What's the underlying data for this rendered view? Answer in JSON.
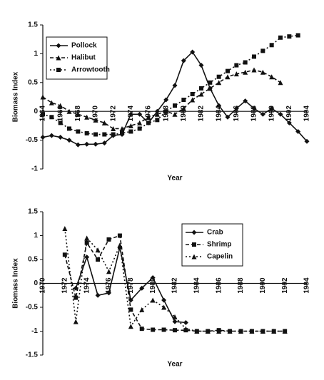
{
  "chart_data": [
    {
      "type": "line",
      "ylabel": "Biomass Index",
      "xlabel": "Year",
      "x": [
        1964,
        1965,
        1966,
        1967,
        1968,
        1969,
        1970,
        1971,
        1972,
        1973,
        1974,
        1975,
        1976,
        1977,
        1978,
        1979,
        1980,
        1981,
        1982,
        1983,
        1984,
        1985,
        1986,
        1987,
        1988,
        1989,
        1990,
        1991,
        1992,
        1993,
        1994
      ],
      "xlim": [
        1964,
        1994
      ],
      "xticks": [
        1964,
        1966,
        1968,
        1970,
        1972,
        1974,
        1976,
        1978,
        1980,
        1982,
        1984,
        1986,
        1988,
        1990,
        1992,
        1994
      ],
      "ylim": [
        -1,
        1.5
      ],
      "yticks": [
        -1,
        -0.5,
        0,
        0.5,
        1,
        1.5
      ],
      "legend": "upper left",
      "series": [
        {
          "name": "Pollock",
          "color": "#111111",
          "marker": "diamond",
          "dash": "solid",
          "values": [
            -0.45,
            -0.42,
            -0.45,
            -0.5,
            -0.58,
            -0.57,
            -0.57,
            -0.55,
            -0.42,
            -0.4,
            -0.05,
            -0.05,
            -0.2,
            0,
            0.2,
            0.45,
            0.88,
            1.03,
            0.8,
            0.4,
            0.1,
            -0.1,
            0.05,
            0.18,
            0.05,
            -0.05,
            0.05,
            -0.05,
            -0.2,
            -0.35,
            -0.52
          ]
        },
        {
          "name": "Halibut",
          "color": "#111111",
          "marker": "triangle",
          "dash": "dashed",
          "values": [
            0.25,
            0.15,
            0.1,
            0,
            -0.05,
            -0.1,
            -0.15,
            -0.2,
            -0.3,
            -0.3,
            -0.25,
            -0.2,
            -0.1,
            -0.05,
            0,
            -0.05,
            0.05,
            0.2,
            0.3,
            0.4,
            0.5,
            0.6,
            0.65,
            0.68,
            0.72,
            0.68,
            0.6,
            0.5,
            null,
            null,
            null
          ]
        },
        {
          "name": "Arrowtooth",
          "color": "#111111",
          "marker": "square",
          "dash": "dotted",
          "values": [
            -0.05,
            -0.1,
            -0.2,
            -0.3,
            -0.35,
            -0.38,
            -0.4,
            -0.4,
            -0.4,
            -0.38,
            -0.35,
            -0.3,
            -0.2,
            -0.15,
            0,
            0.1,
            0.2,
            0.3,
            0.4,
            0.5,
            0.6,
            0.7,
            0.8,
            0.85,
            0.95,
            1.05,
            1.15,
            1.28,
            1.3,
            1.32,
            null
          ]
        }
      ]
    },
    {
      "type": "line",
      "ylabel": "Biomass Index",
      "xlabel": "Year",
      "x": [
        1972,
        1973,
        1974,
        1975,
        1976,
        1977,
        1978,
        1979,
        1980,
        1981,
        1982,
        1983,
        1984,
        1985,
        1986,
        1987,
        1988,
        1989,
        1990,
        1991,
        1992
      ],
      "xlim": [
        1970,
        1994
      ],
      "xticks": [
        1970,
        1972,
        1974,
        1976,
        1978,
        1980,
        1982,
        1984,
        1986,
        1988,
        1990,
        1992,
        1994
      ],
      "ylim": [
        -1.5,
        1.5
      ],
      "yticks": [
        -1.5,
        -1,
        -0.5,
        0,
        0.5,
        1,
        1.5
      ],
      "legend": "upper right",
      "series": [
        {
          "name": "Crab",
          "color": "#111111",
          "marker": "diamond",
          "dash": "solid",
          "values": [
            null,
            -0.1,
            0.55,
            -0.25,
            -0.2,
            0.75,
            -0.35,
            -0.1,
            0.12,
            -0.35,
            -0.8,
            -0.82,
            null,
            null,
            null,
            null,
            null,
            null,
            null,
            null,
            null
          ]
        },
        {
          "name": "Shrimp",
          "color": "#111111",
          "marker": "square",
          "dash": "dashed",
          "values": [
            0.6,
            -0.3,
            0.85,
            0.5,
            0.92,
            1.0,
            -0.55,
            -0.95,
            -0.97,
            -0.97,
            -0.98,
            -0.98,
            -1,
            -1,
            -0.98,
            -1,
            -1,
            -1,
            -1,
            -1,
            -1
          ]
        },
        {
          "name": "Capelin",
          "color": "#111111",
          "marker": "triangle",
          "dash": "dotted",
          "values": [
            1.15,
            -0.8,
            0.95,
            0.7,
            0.25,
            0.8,
            -0.9,
            -0.55,
            -0.35,
            -0.5,
            -0.7,
            -0.95,
            -1,
            -1,
            -1,
            -1,
            -1,
            -1,
            -1,
            -1,
            -1
          ]
        }
      ]
    }
  ]
}
